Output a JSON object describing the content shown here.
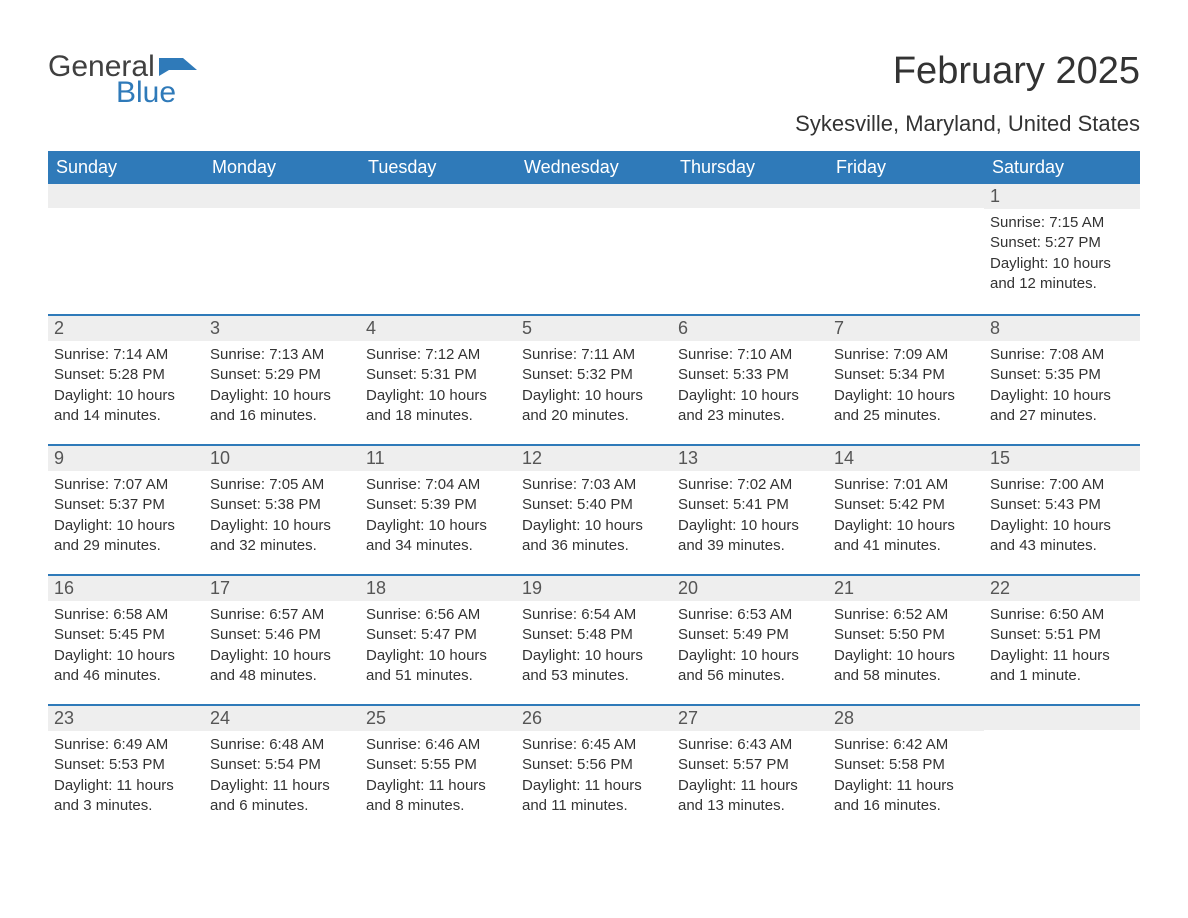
{
  "logo": {
    "text_general": "General",
    "text_blue": "Blue",
    "flag_color": "#2f7ab9",
    "general_color": "#404040"
  },
  "title": "February 2025",
  "location": "Sykesville, Maryland, United States",
  "colors": {
    "header_bg": "#2f7ab9",
    "header_text": "#ffffff",
    "daynum_bg": "#eeeeee",
    "daynum_text": "#555555",
    "body_text": "#333333",
    "row_border": "#2f7ab9",
    "page_bg": "#ffffff"
  },
  "typography": {
    "title_fontsize": 38,
    "location_fontsize": 22,
    "dayheader_fontsize": 18,
    "daynum_fontsize": 18,
    "body_fontsize": 15,
    "font_family": "Arial"
  },
  "day_headers": [
    "Sunday",
    "Monday",
    "Tuesday",
    "Wednesday",
    "Thursday",
    "Friday",
    "Saturday"
  ],
  "weeks": [
    [
      null,
      null,
      null,
      null,
      null,
      null,
      {
        "n": "1",
        "sr": "Sunrise: 7:15 AM",
        "ss": "Sunset: 5:27 PM",
        "dl": "Daylight: 10 hours and 12 minutes."
      }
    ],
    [
      {
        "n": "2",
        "sr": "Sunrise: 7:14 AM",
        "ss": "Sunset: 5:28 PM",
        "dl": "Daylight: 10 hours and 14 minutes."
      },
      {
        "n": "3",
        "sr": "Sunrise: 7:13 AM",
        "ss": "Sunset: 5:29 PM",
        "dl": "Daylight: 10 hours and 16 minutes."
      },
      {
        "n": "4",
        "sr": "Sunrise: 7:12 AM",
        "ss": "Sunset: 5:31 PM",
        "dl": "Daylight: 10 hours and 18 minutes."
      },
      {
        "n": "5",
        "sr": "Sunrise: 7:11 AM",
        "ss": "Sunset: 5:32 PM",
        "dl": "Daylight: 10 hours and 20 minutes."
      },
      {
        "n": "6",
        "sr": "Sunrise: 7:10 AM",
        "ss": "Sunset: 5:33 PM",
        "dl": "Daylight: 10 hours and 23 minutes."
      },
      {
        "n": "7",
        "sr": "Sunrise: 7:09 AM",
        "ss": "Sunset: 5:34 PM",
        "dl": "Daylight: 10 hours and 25 minutes."
      },
      {
        "n": "8",
        "sr": "Sunrise: 7:08 AM",
        "ss": "Sunset: 5:35 PM",
        "dl": "Daylight: 10 hours and 27 minutes."
      }
    ],
    [
      {
        "n": "9",
        "sr": "Sunrise: 7:07 AM",
        "ss": "Sunset: 5:37 PM",
        "dl": "Daylight: 10 hours and 29 minutes."
      },
      {
        "n": "10",
        "sr": "Sunrise: 7:05 AM",
        "ss": "Sunset: 5:38 PM",
        "dl": "Daylight: 10 hours and 32 minutes."
      },
      {
        "n": "11",
        "sr": "Sunrise: 7:04 AM",
        "ss": "Sunset: 5:39 PM",
        "dl": "Daylight: 10 hours and 34 minutes."
      },
      {
        "n": "12",
        "sr": "Sunrise: 7:03 AM",
        "ss": "Sunset: 5:40 PM",
        "dl": "Daylight: 10 hours and 36 minutes."
      },
      {
        "n": "13",
        "sr": "Sunrise: 7:02 AM",
        "ss": "Sunset: 5:41 PM",
        "dl": "Daylight: 10 hours and 39 minutes."
      },
      {
        "n": "14",
        "sr": "Sunrise: 7:01 AM",
        "ss": "Sunset: 5:42 PM",
        "dl": "Daylight: 10 hours and 41 minutes."
      },
      {
        "n": "15",
        "sr": "Sunrise: 7:00 AM",
        "ss": "Sunset: 5:43 PM",
        "dl": "Daylight: 10 hours and 43 minutes."
      }
    ],
    [
      {
        "n": "16",
        "sr": "Sunrise: 6:58 AM",
        "ss": "Sunset: 5:45 PM",
        "dl": "Daylight: 10 hours and 46 minutes."
      },
      {
        "n": "17",
        "sr": "Sunrise: 6:57 AM",
        "ss": "Sunset: 5:46 PM",
        "dl": "Daylight: 10 hours and 48 minutes."
      },
      {
        "n": "18",
        "sr": "Sunrise: 6:56 AM",
        "ss": "Sunset: 5:47 PM",
        "dl": "Daylight: 10 hours and 51 minutes."
      },
      {
        "n": "19",
        "sr": "Sunrise: 6:54 AM",
        "ss": "Sunset: 5:48 PM",
        "dl": "Daylight: 10 hours and 53 minutes."
      },
      {
        "n": "20",
        "sr": "Sunrise: 6:53 AM",
        "ss": "Sunset: 5:49 PM",
        "dl": "Daylight: 10 hours and 56 minutes."
      },
      {
        "n": "21",
        "sr": "Sunrise: 6:52 AM",
        "ss": "Sunset: 5:50 PM",
        "dl": "Daylight: 10 hours and 58 minutes."
      },
      {
        "n": "22",
        "sr": "Sunrise: 6:50 AM",
        "ss": "Sunset: 5:51 PM",
        "dl": "Daylight: 11 hours and 1 minute."
      }
    ],
    [
      {
        "n": "23",
        "sr": "Sunrise: 6:49 AM",
        "ss": "Sunset: 5:53 PM",
        "dl": "Daylight: 11 hours and 3 minutes."
      },
      {
        "n": "24",
        "sr": "Sunrise: 6:48 AM",
        "ss": "Sunset: 5:54 PM",
        "dl": "Daylight: 11 hours and 6 minutes."
      },
      {
        "n": "25",
        "sr": "Sunrise: 6:46 AM",
        "ss": "Sunset: 5:55 PM",
        "dl": "Daylight: 11 hours and 8 minutes."
      },
      {
        "n": "26",
        "sr": "Sunrise: 6:45 AM",
        "ss": "Sunset: 5:56 PM",
        "dl": "Daylight: 11 hours and 11 minutes."
      },
      {
        "n": "27",
        "sr": "Sunrise: 6:43 AM",
        "ss": "Sunset: 5:57 PM",
        "dl": "Daylight: 11 hours and 13 minutes."
      },
      {
        "n": "28",
        "sr": "Sunrise: 6:42 AM",
        "ss": "Sunset: 5:58 PM",
        "dl": "Daylight: 11 hours and 16 minutes."
      },
      null
    ]
  ]
}
